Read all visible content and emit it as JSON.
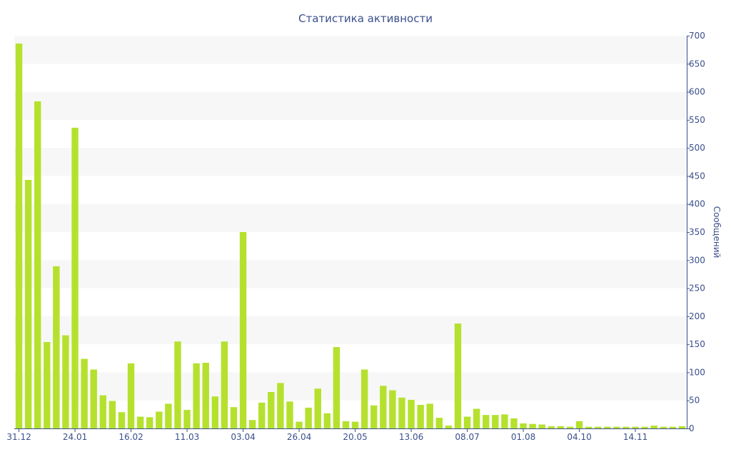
{
  "chart_data": {
    "type": "bar",
    "title": "Статистика активности",
    "xlabel": "",
    "ylabel": "Сообщений",
    "ylim": [
      0,
      700
    ],
    "y_ticks": [
      0,
      50,
      100,
      150,
      200,
      250,
      300,
      350,
      400,
      450,
      500,
      550,
      600,
      650,
      700
    ],
    "y_axis_side": "right",
    "grid": "alternating horizontal bands",
    "legend": "none",
    "colors": {
      "bar": "#b5e12e",
      "axis": "#3a4f8c",
      "band": "#f7f7f7"
    },
    "x_tick_labels": [
      {
        "label": "31.12",
        "index": 0
      },
      {
        "label": "24.01",
        "index": 6
      },
      {
        "label": "16.02",
        "index": 12
      },
      {
        "label": "11.03",
        "index": 18
      },
      {
        "label": "03.04",
        "index": 24
      },
      {
        "label": "26.04",
        "index": 30
      },
      {
        "label": "20.05",
        "index": 36
      },
      {
        "label": "13.06",
        "index": 42
      },
      {
        "label": "08.07",
        "index": 48
      },
      {
        "label": "01.08",
        "index": 54
      },
      {
        "label": "04.10",
        "index": 60
      },
      {
        "label": "14.11",
        "index": 66
      }
    ],
    "values": [
      686,
      443,
      583,
      154,
      289,
      166,
      536,
      124,
      105,
      59,
      49,
      29,
      116,
      21,
      20,
      30,
      44,
      155,
      33,
      116,
      117,
      57,
      155,
      38,
      350,
      15,
      46,
      65,
      81,
      48,
      12,
      37,
      71,
      27,
      145,
      13,
      12,
      105,
      41,
      76,
      68,
      55,
      51,
      42,
      44,
      19,
      5,
      187,
      21,
      35,
      24,
      24,
      25,
      18,
      9,
      8,
      7,
      4,
      4,
      3,
      13,
      3,
      3,
      3,
      3,
      3,
      3,
      3,
      5,
      3,
      3,
      4
    ]
  }
}
